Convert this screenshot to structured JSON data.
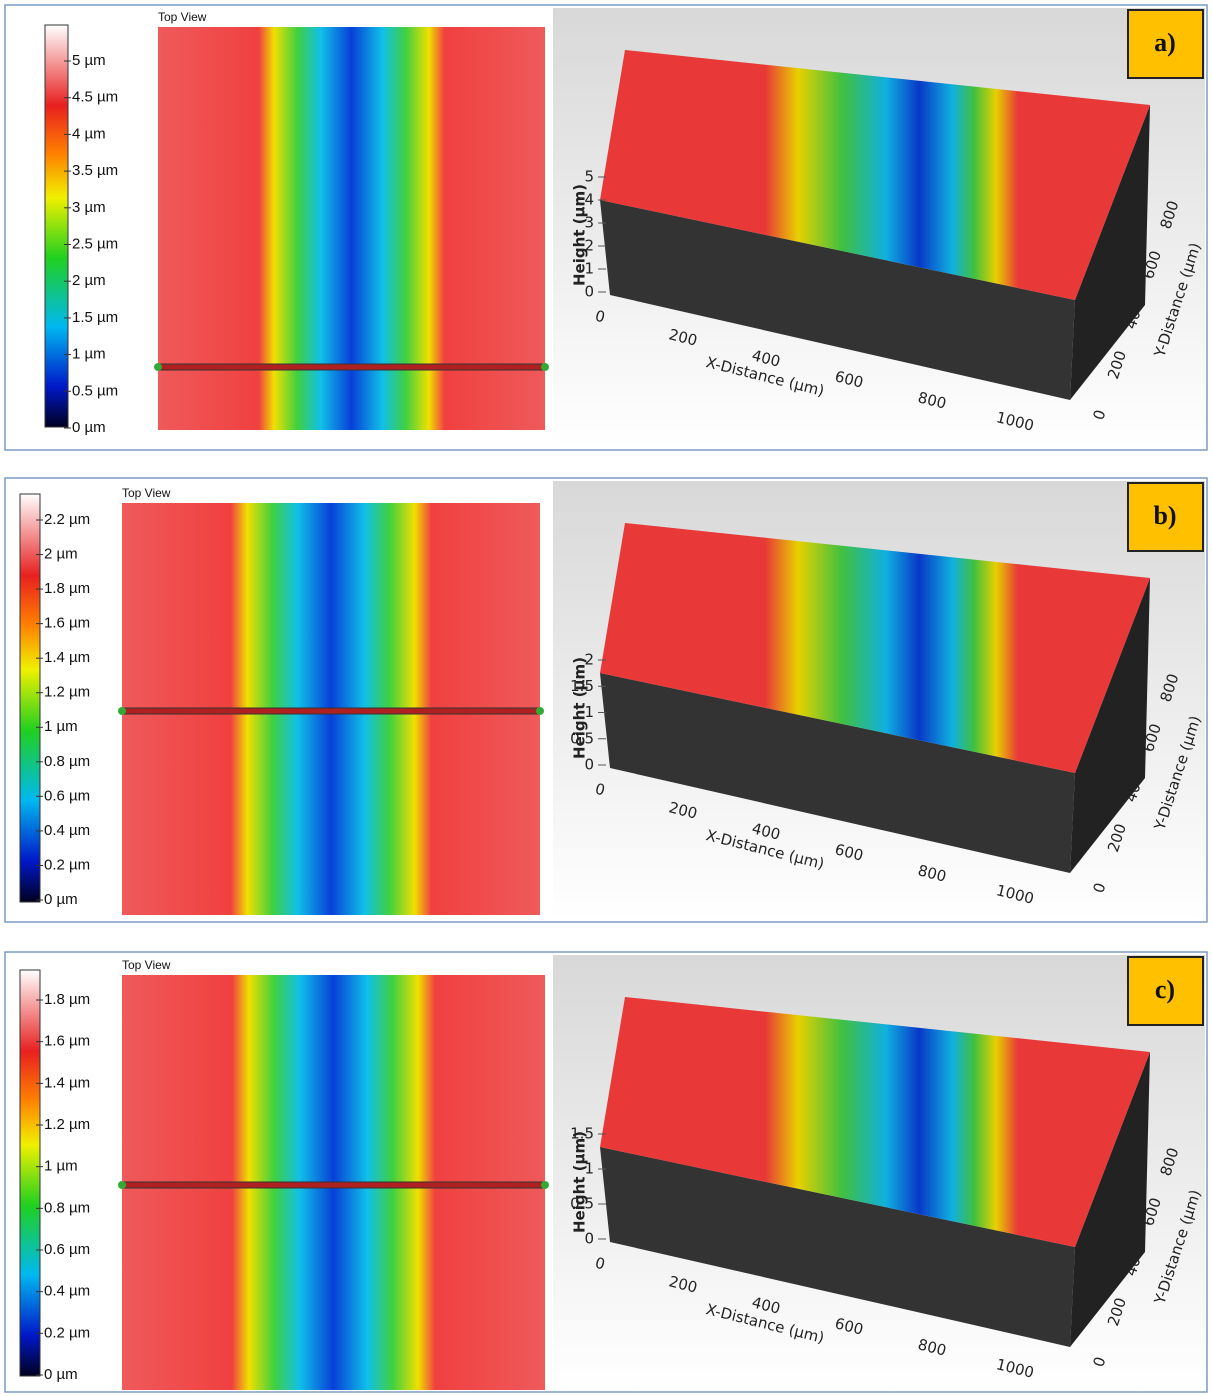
{
  "panels": [
    {
      "label": "a)",
      "top_view": "Top View",
      "colorbar_ticks": [
        "5 µm",
        "4.5 µm",
        "4 µm",
        "3.5 µm",
        "3 µm",
        "2.5 µm",
        "2 µm",
        "1.5 µm",
        "1 µm",
        "0.5 µm",
        "0 µm"
      ],
      "height_label": "Height (µm)",
      "height_ticks": [
        "0",
        "1",
        "2",
        "3",
        "4",
        "5"
      ],
      "x_label": "X-Distance (µm)",
      "x_ticks": [
        "0",
        "200",
        "400",
        "600",
        "800",
        "1000"
      ],
      "y_label": "Y-Distance (µm)",
      "y_ticks": [
        "0",
        "200",
        "400",
        "600",
        "800"
      ]
    },
    {
      "label": "b)",
      "top_view": "Top View",
      "colorbar_ticks": [
        "2.2 µm",
        "2 µm",
        "1.8 µm",
        "1.6 µm",
        "1.4 µm",
        "1.2 µm",
        "1 µm",
        "0.8 µm",
        "0.6 µm",
        "0.4 µm",
        "0.2 µm",
        "0 µm"
      ],
      "height_label": "Height (µm)",
      "height_ticks": [
        "0",
        "0.5",
        "1",
        "1.5",
        "2"
      ],
      "x_label": "X-Distance (µm)",
      "x_ticks": [
        "0",
        "200",
        "400",
        "600",
        "800",
        "1000"
      ],
      "y_label": "Y-Distance (µm)",
      "y_ticks": [
        "0",
        "200",
        "400",
        "600",
        "800"
      ]
    },
    {
      "label": "c)",
      "top_view": "Top View",
      "colorbar_ticks": [
        "1.8 µm",
        "1.6 µm",
        "1.4 µm",
        "1.2 µm",
        "1 µm",
        "0.8 µm",
        "0.6 µm",
        "0.4 µm",
        "0.2 µm",
        "0 µm"
      ],
      "height_label": "Height (µm)",
      "height_ticks": [
        "0",
        "0.5",
        "1",
        "1.5"
      ],
      "x_label": "X-Distance (µm)",
      "x_ticks": [
        "0",
        "200",
        "400",
        "600",
        "800",
        "1000"
      ],
      "y_label": "Y-Distance (µm)",
      "y_ticks": [
        "0",
        "200",
        "400",
        "600",
        "800"
      ]
    }
  ]
}
